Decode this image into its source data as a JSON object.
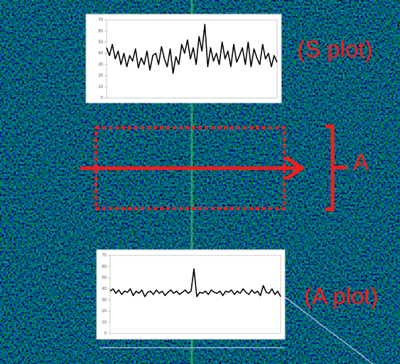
{
  "annotations": {
    "s_plot": "(S plot)",
    "a_label": "A",
    "a_plot": "(A plot)"
  },
  "chart_data": [
    {
      "type": "line",
      "color": "#000000",
      "ylim": [
        0,
        70
      ],
      "yticks": [
        0,
        10,
        20,
        30,
        40,
        50,
        60,
        70
      ],
      "values": [
        45,
        38,
        48,
        35,
        42,
        30,
        40,
        28,
        38,
        33,
        44,
        27,
        36,
        30,
        42,
        25,
        38,
        40,
        30,
        46,
        35,
        28,
        44,
        22,
        37,
        30,
        48,
        40,
        52,
        35,
        45,
        30,
        55,
        42,
        66,
        28,
        45,
        33,
        40,
        30,
        50,
        35,
        42,
        28,
        48,
        32,
        38,
        45,
        30,
        50,
        28,
        44,
        36,
        30,
        48,
        35,
        40,
        28,
        38,
        32
      ]
    },
    {
      "type": "line",
      "color": "#000000",
      "ylim": [
        0,
        70
      ],
      "yticks": [
        0,
        10,
        20,
        30,
        40,
        50,
        60,
        70
      ],
      "values": [
        38,
        40,
        36,
        39,
        35,
        38,
        37,
        40,
        34,
        38,
        36,
        39,
        33,
        37,
        38,
        35,
        39,
        36,
        38,
        34,
        37,
        39,
        36,
        38,
        35,
        37,
        39,
        36,
        38,
        58,
        33,
        37,
        36,
        38,
        35,
        39,
        37,
        36,
        38,
        34,
        38,
        37,
        39,
        35,
        38,
        36,
        40,
        37,
        35,
        39,
        36,
        38,
        34,
        43,
        37,
        36,
        40,
        35,
        38,
        33
      ]
    }
  ]
}
